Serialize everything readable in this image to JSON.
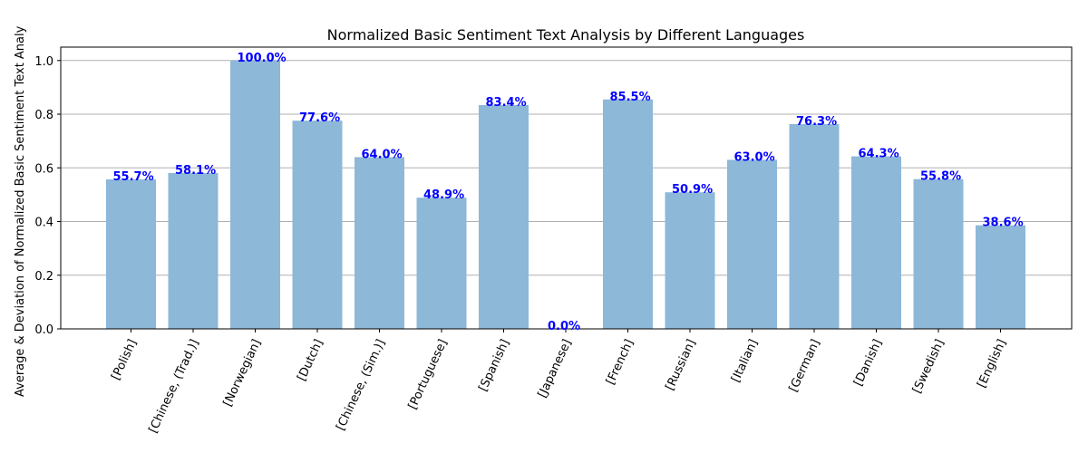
{
  "chart_data": {
    "type": "bar",
    "title": "Normalized Basic Sentiment Text Analysis by Different Languages",
    "xlabel": "",
    "ylabel": "Average & Deviation of Normalized Basic Sentiment Text Analy",
    "categories": [
      "[Polish]",
      "[Chinese, (Trad.)]",
      "[Norwegian]",
      "[Dutch]",
      "[Chinese, (Sim.)]",
      "[Portuguese]",
      "[Spanish]",
      "[Japanese]",
      "[French]",
      "[Russian]",
      "[Italian]",
      "[German]",
      "[Danish]",
      "[Swedish]",
      "[English]"
    ],
    "values": [
      0.557,
      0.581,
      1.0,
      0.776,
      0.64,
      0.489,
      0.834,
      0.0,
      0.855,
      0.509,
      0.63,
      0.763,
      0.643,
      0.558,
      0.386
    ],
    "data_labels": [
      "55.7%",
      "58.1%",
      "100.0%",
      "77.6%",
      "64.0%",
      "48.9%",
      "83.4%",
      "0.0%",
      "85.5%",
      "50.9%",
      "63.0%",
      "76.3%",
      "64.3%",
      "55.8%",
      "38.6%"
    ],
    "ylim": [
      0,
      1.05
    ],
    "yticks": [
      0.0,
      0.2,
      0.4,
      0.6,
      0.8,
      1.0
    ],
    "ytick_labels": [
      "0.0",
      "0.2",
      "0.4",
      "0.6",
      "0.8",
      "1.0"
    ],
    "grid": "y",
    "colors": {
      "bar": "#8db8d8",
      "data_label": "#0000ff",
      "grid": "#b0b0b0"
    }
  }
}
